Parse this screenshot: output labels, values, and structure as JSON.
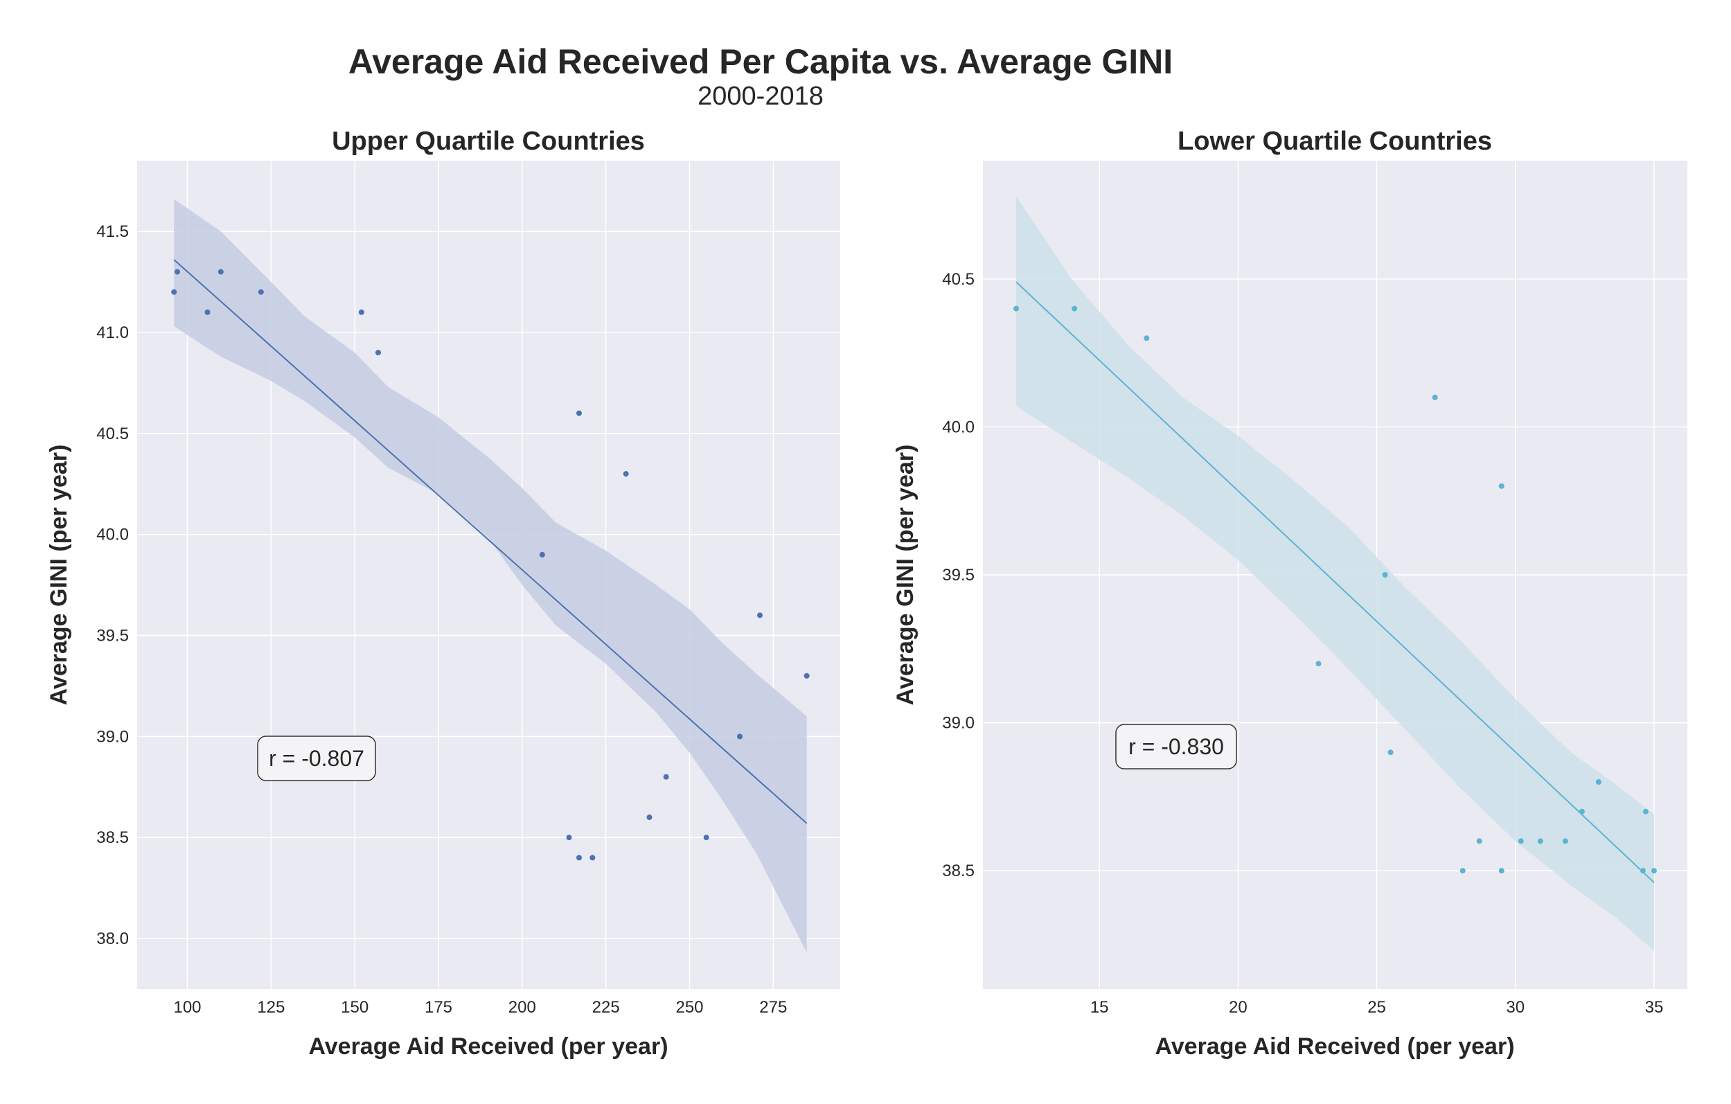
{
  "figure": {
    "title": "Average Aid Received Per Capita vs. Average GINI",
    "subtitle": "2000-2018"
  },
  "colors": {
    "panel_background": "#EAEAF2",
    "grid": "#FFFFFF",
    "upper_series": "#4C72B0",
    "upper_band": "#C6CCE3",
    "lower_series": "#5BB4D3",
    "lower_band": "#CCE1EA"
  },
  "chart_data": [
    {
      "type": "scatter",
      "title": "Upper Quartile Countries",
      "xlabel": "Average Aid Received (per year)",
      "ylabel": "Average GINI (per year)",
      "xlim": [
        85,
        295
      ],
      "ylim": [
        37.75,
        41.85
      ],
      "xticks": [
        100,
        125,
        150,
        175,
        200,
        225,
        250,
        275
      ],
      "yticks": [
        38.0,
        38.5,
        39.0,
        39.5,
        40.0,
        40.5,
        41.0,
        41.5
      ],
      "xtick_labels": [
        "100",
        "125",
        "150",
        "175",
        "200",
        "225",
        "250",
        "275"
      ],
      "ytick_labels": [
        "38.0",
        "38.5",
        "39.0",
        "39.5",
        "40.0",
        "40.5",
        "41.0",
        "41.5"
      ],
      "grid": true,
      "annotation": "r = -0.807",
      "annotation_position": "lower-left",
      "points": [
        {
          "x": 96,
          "y": 41.2
        },
        {
          "x": 97,
          "y": 41.3
        },
        {
          "x": 106,
          "y": 41.1
        },
        {
          "x": 110,
          "y": 41.3
        },
        {
          "x": 122,
          "y": 41.2
        },
        {
          "x": 152,
          "y": 41.1
        },
        {
          "x": 157,
          "y": 40.9
        },
        {
          "x": 206,
          "y": 39.9
        },
        {
          "x": 214,
          "y": 38.5
        },
        {
          "x": 217,
          "y": 40.6
        },
        {
          "x": 217,
          "y": 38.4
        },
        {
          "x": 221,
          "y": 38.4
        },
        {
          "x": 231,
          "y": 40.3
        },
        {
          "x": 238,
          "y": 38.6
        },
        {
          "x": 243,
          "y": 38.8
        },
        {
          "x": 255,
          "y": 38.5
        },
        {
          "x": 265,
          "y": 39.0
        },
        {
          "x": 271,
          "y": 39.6
        },
        {
          "x": 285,
          "y": 39.3
        }
      ],
      "regression": {
        "x": [
          96,
          285
        ],
        "y": [
          41.36,
          38.57
        ]
      },
      "ci_band": {
        "x": [
          96,
          110,
          125,
          135,
          150,
          160,
          175,
          190,
          200,
          210,
          225,
          240,
          250,
          260,
          270,
          285
        ],
        "lower": [
          41.03,
          40.88,
          40.76,
          40.66,
          40.48,
          40.33,
          40.2,
          39.98,
          39.75,
          39.55,
          39.36,
          39.12,
          38.92,
          38.68,
          38.42,
          37.93
        ],
        "upper": [
          41.66,
          41.5,
          41.25,
          41.08,
          40.9,
          40.73,
          40.58,
          40.38,
          40.23,
          40.06,
          39.92,
          39.75,
          39.63,
          39.46,
          39.31,
          39.1
        ]
      }
    },
    {
      "type": "scatter",
      "title": "Lower Quartile Countries",
      "xlabel": "Average Aid Received (per year)",
      "ylabel": "Average GINI (per year)",
      "xlim": [
        10.8,
        36.2
      ],
      "ylim": [
        38.1,
        40.9
      ],
      "xticks": [
        15,
        20,
        25,
        30,
        35
      ],
      "yticks": [
        38.5,
        39.0,
        39.5,
        40.0,
        40.5
      ],
      "xtick_labels": [
        "15",
        "20",
        "25",
        "30",
        "35"
      ],
      "ytick_labels": [
        "38.5",
        "39.0",
        "39.5",
        "40.0",
        "40.5"
      ],
      "grid": true,
      "annotation": "r = -0.830",
      "annotation_position": "lower-left",
      "points": [
        {
          "x": 12.0,
          "y": 40.4
        },
        {
          "x": 14.1,
          "y": 40.4
        },
        {
          "x": 16.7,
          "y": 40.3
        },
        {
          "x": 22.9,
          "y": 39.2
        },
        {
          "x": 25.3,
          "y": 39.5
        },
        {
          "x": 25.5,
          "y": 38.9
        },
        {
          "x": 27.1,
          "y": 40.1
        },
        {
          "x": 28.1,
          "y": 38.5
        },
        {
          "x": 28.7,
          "y": 38.6
        },
        {
          "x": 29.5,
          "y": 39.8
        },
        {
          "x": 29.5,
          "y": 38.5
        },
        {
          "x": 30.2,
          "y": 38.6
        },
        {
          "x": 30.9,
          "y": 38.6
        },
        {
          "x": 31.8,
          "y": 38.6
        },
        {
          "x": 32.4,
          "y": 38.7
        },
        {
          "x": 33.0,
          "y": 38.8
        },
        {
          "x": 34.6,
          "y": 38.5
        },
        {
          "x": 34.7,
          "y": 38.7
        },
        {
          "x": 35.0,
          "y": 38.5
        }
      ],
      "regression": {
        "x": [
          12.0,
          35.0
        ],
        "y": [
          40.49,
          38.46
        ]
      },
      "ci_band": {
        "x": [
          12.0,
          14.0,
          16.0,
          18.0,
          20.0,
          22.0,
          24.0,
          26.0,
          28.0,
          30.0,
          32.0,
          33.5,
          35.0
        ],
        "lower": [
          40.07,
          39.95,
          39.83,
          39.7,
          39.55,
          39.37,
          39.18,
          38.98,
          38.78,
          38.6,
          38.45,
          38.35,
          38.23
        ],
        "upper": [
          40.78,
          40.5,
          40.28,
          40.1,
          39.97,
          39.82,
          39.66,
          39.46,
          39.28,
          39.08,
          38.9,
          38.8,
          38.69
        ]
      }
    }
  ]
}
